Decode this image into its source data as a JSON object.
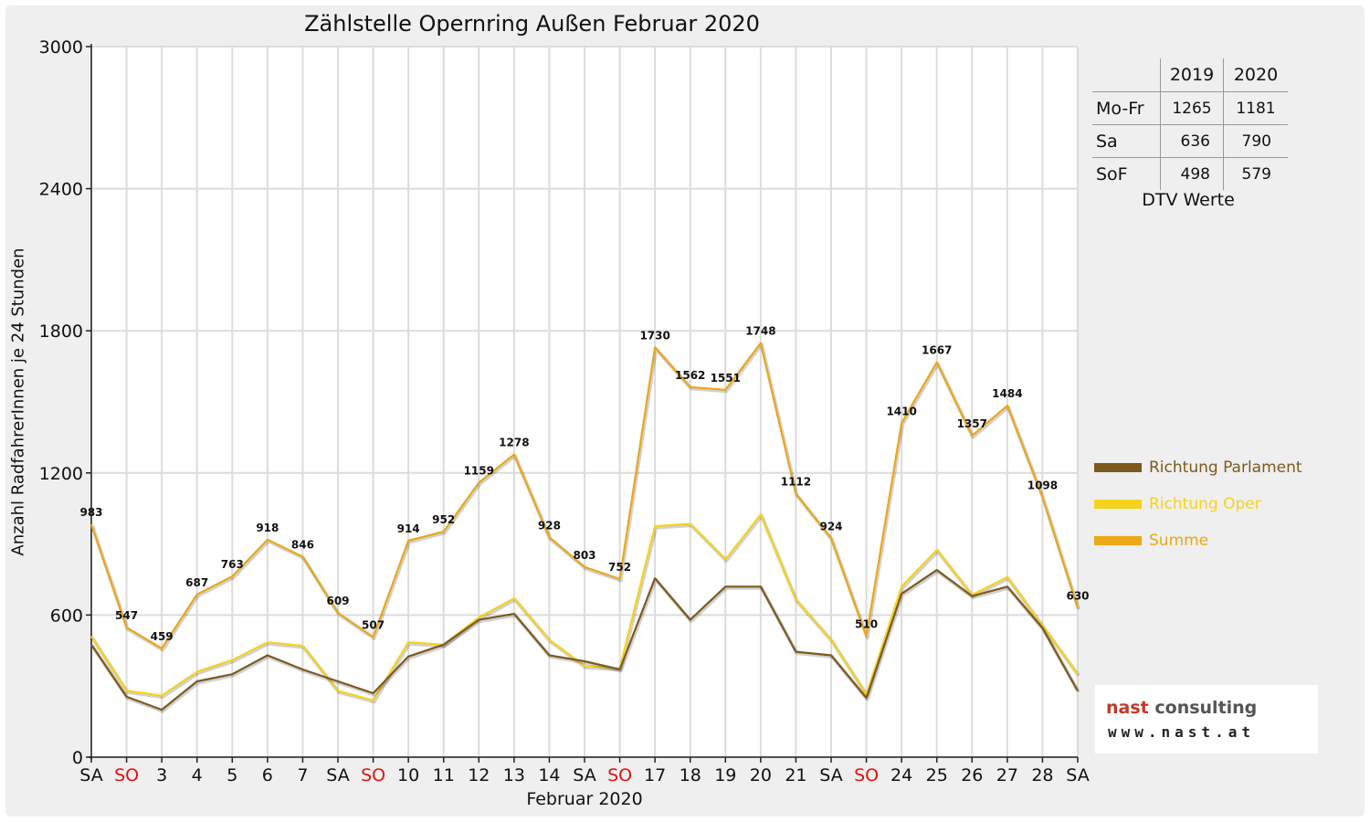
{
  "chart_data": {
    "type": "line",
    "title": "Zählstelle Opernring Außen Februar 2020",
    "xlabel": "Februar 2020",
    "ylabel": "Anzahl RadfahrerInnen je 24 Stunden",
    "ylim": [
      0,
      3000
    ],
    "yticks": [
      "0",
      "600",
      "1200",
      "1800",
      "2400",
      "3000"
    ],
    "grid": true,
    "legend_position": "right",
    "categories": [
      "SA",
      "SO",
      "3",
      "4",
      "5",
      "6",
      "7",
      "SA",
      "SO",
      "10",
      "11",
      "12",
      "13",
      "14",
      "SA",
      "SO",
      "17",
      "18",
      "19",
      "20",
      "21",
      "SA",
      "SO",
      "24",
      "25",
      "26",
      "27",
      "28",
      "SA"
    ],
    "sunday_indices": [
      1,
      8,
      15,
      22
    ],
    "sunday_color": "#e8100c",
    "series": [
      {
        "name": "Richtung Parlament",
        "color": "#7c5a1e",
        "values": [
          475,
          255,
          200,
          320,
          350,
          430,
          370,
          320,
          270,
          425,
          475,
          580,
          605,
          430,
          405,
          370,
          755,
          580,
          720,
          720,
          445,
          430,
          250,
          690,
          790,
          680,
          720,
          545,
          280
        ]
      },
      {
        "name": "Richtung Oper",
        "color": "#f7d21c",
        "values": [
          510,
          280,
          260,
          360,
          410,
          485,
          470,
          280,
          240,
          485,
          475,
          590,
          670,
          495,
          385,
          375,
          975,
          985,
          835,
          1025,
          665,
          495,
          265,
          720,
          875,
          685,
          760,
          555,
          350
        ]
      },
      {
        "name": "Summe",
        "color": "#eba817",
        "values": [
          983,
          547,
          459,
          687,
          763,
          918,
          846,
          609,
          507,
          914,
          952,
          1159,
          1278,
          928,
          803,
          752,
          1730,
          1562,
          1551,
          1748,
          1112,
          924,
          510,
          1410,
          1667,
          1357,
          1484,
          1098,
          630
        ]
      }
    ],
    "data_labels": [
      "983",
      "547",
      "459",
      "687",
      "763",
      "918",
      "846",
      "609",
      "507",
      "914",
      "952",
      "1159",
      "1278",
      "928",
      "803",
      "752",
      "1730",
      "1562",
      "1551",
      "1748",
      "1112",
      "924",
      "510",
      "1410",
      "1667",
      "1357",
      "1484",
      "1098",
      "630"
    ]
  },
  "dtv_table": {
    "headers": [
      "",
      "2019",
      "2020"
    ],
    "rows": [
      {
        "label": "Mo-Fr",
        "v2019": "1265",
        "v2020": "1181"
      },
      {
        "label": "Sa",
        "v2019": "636",
        "v2020": "790"
      },
      {
        "label": "SoF",
        "v2019": "498",
        "v2020": "579"
      }
    ],
    "caption": "DTV Werte"
  },
  "logo": {
    "name_part1": "nast",
    "name_part2": "consulting",
    "url": "www.nast.at",
    "color1": "#c0392b",
    "color2": "#555555"
  }
}
